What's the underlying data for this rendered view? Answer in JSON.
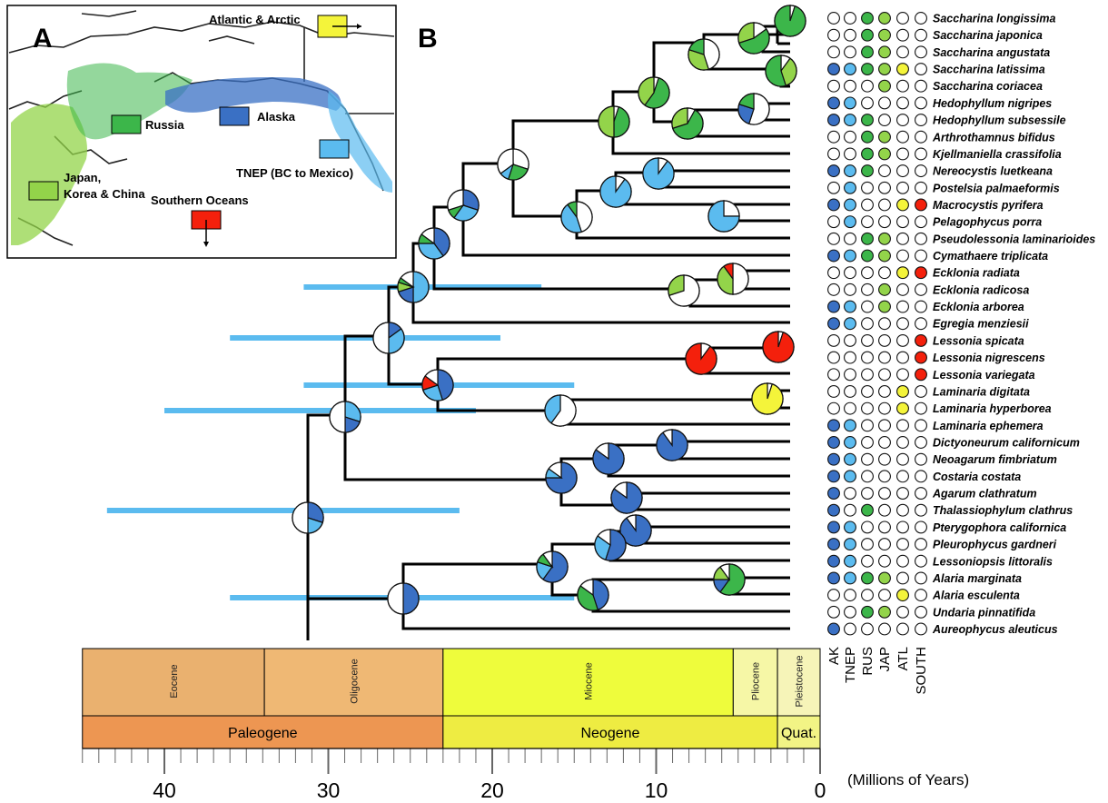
{
  "panel_a": {
    "label": "A"
  },
  "panel_b": {
    "label": "B"
  },
  "regions": [
    {
      "key": "AK",
      "name": "Alaska",
      "color": "#3a70c4"
    },
    {
      "key": "TNEP",
      "name": "TNEP (BC to Mexico)",
      "color": "#5bbbef"
    },
    {
      "key": "RUS",
      "name": "Russia",
      "color": "#3cb64a"
    },
    {
      "key": "JAP",
      "name": "Japan, Korea & China",
      "color": "#93d44a"
    },
    {
      "key": "ATL",
      "name": "Atlantic & Arctic",
      "color": "#f4f43a"
    },
    {
      "key": "SOUTH",
      "name": "Southern Oceans",
      "color": "#f4200c"
    }
  ],
  "species": [
    {
      "name": "Saccharina longissima",
      "regions": [
        0,
        0,
        1,
        1,
        0,
        0
      ]
    },
    {
      "name": "Saccharina japonica",
      "regions": [
        0,
        0,
        1,
        1,
        0,
        0
      ]
    },
    {
      "name": "Saccharina angustata",
      "regions": [
        0,
        0,
        1,
        1,
        0,
        0
      ]
    },
    {
      "name": "Saccharina latissima",
      "regions": [
        1,
        1,
        1,
        1,
        1,
        0
      ]
    },
    {
      "name": "Saccharina coriacea",
      "regions": [
        0,
        0,
        0,
        1,
        0,
        0
      ]
    },
    {
      "name": "Hedophyllum nigripes",
      "regions": [
        1,
        1,
        0,
        0,
        0,
        0
      ]
    },
    {
      "name": "Hedophyllum subsessile",
      "regions": [
        1,
        1,
        1,
        0,
        0,
        0
      ]
    },
    {
      "name": "Arthrothamnus bifidus",
      "regions": [
        0,
        0,
        1,
        1,
        0,
        0
      ]
    },
    {
      "name": "Kjellmaniella crassifolia",
      "regions": [
        0,
        0,
        1,
        1,
        0,
        0
      ]
    },
    {
      "name": "Nereocystis luetkeana",
      "regions": [
        1,
        1,
        1,
        0,
        0,
        0
      ]
    },
    {
      "name": "Postelsia palmaeformis",
      "regions": [
        0,
        1,
        0,
        0,
        0,
        0
      ]
    },
    {
      "name": "Macrocystis pyrifera",
      "regions": [
        1,
        1,
        0,
        0,
        1,
        1
      ]
    },
    {
      "name": "Pelagophycus porra",
      "regions": [
        0,
        1,
        0,
        0,
        0,
        0
      ]
    },
    {
      "name": "Pseudolessonia laminarioides",
      "regions": [
        0,
        0,
        1,
        1,
        0,
        0
      ]
    },
    {
      "name": "Cymathaere triplicata",
      "regions": [
        1,
        1,
        1,
        1,
        0,
        0
      ]
    },
    {
      "name": "Ecklonia radiata",
      "regions": [
        0,
        0,
        0,
        0,
        1,
        1
      ]
    },
    {
      "name": "Ecklonia radicosa",
      "regions": [
        0,
        0,
        0,
        1,
        0,
        0
      ]
    },
    {
      "name": "Ecklonia arborea",
      "regions": [
        1,
        1,
        0,
        1,
        0,
        0
      ]
    },
    {
      "name": "Egregia menziesii",
      "regions": [
        1,
        1,
        0,
        0,
        0,
        0
      ]
    },
    {
      "name": "Lessonia spicata",
      "regions": [
        0,
        0,
        0,
        0,
        0,
        1
      ]
    },
    {
      "name": "Lessonia nigrescens",
      "regions": [
        0,
        0,
        0,
        0,
        0,
        1
      ]
    },
    {
      "name": "Lessonia variegata",
      "regions": [
        0,
        0,
        0,
        0,
        0,
        1
      ]
    },
    {
      "name": "Laminaria digitata",
      "regions": [
        0,
        0,
        0,
        0,
        1,
        0
      ]
    },
    {
      "name": "Laminaria hyperborea",
      "regions": [
        0,
        0,
        0,
        0,
        1,
        0
      ]
    },
    {
      "name": "Laminaria ephemera",
      "regions": [
        1,
        1,
        0,
        0,
        0,
        0
      ]
    },
    {
      "name": "Dictyoneurum californicum",
      "regions": [
        1,
        1,
        0,
        0,
        0,
        0
      ]
    },
    {
      "name": "Neoagarum fimbriatum",
      "regions": [
        1,
        1,
        0,
        0,
        0,
        0
      ]
    },
    {
      "name": "Costaria costata",
      "regions": [
        1,
        1,
        0,
        0,
        0,
        0
      ]
    },
    {
      "name": "Agarum clathratum",
      "regions": [
        1,
        0,
        0,
        0,
        0,
        0
      ]
    },
    {
      "name": "Thalassiophylum clathrus",
      "regions": [
        1,
        0,
        1,
        0,
        0,
        0
      ]
    },
    {
      "name": "Pterygophora californica",
      "regions": [
        1,
        1,
        0,
        0,
        0,
        0
      ]
    },
    {
      "name": "Pleurophycus gardneri",
      "regions": [
        1,
        1,
        0,
        0,
        0,
        0
      ]
    },
    {
      "name": "Lessoniopsis littoralis",
      "regions": [
        1,
        1,
        0,
        0,
        0,
        0
      ]
    },
    {
      "name": "Alaria marginata",
      "regions": [
        1,
        1,
        1,
        1,
        0,
        0
      ]
    },
    {
      "name": "Alaria esculenta",
      "regions": [
        0,
        0,
        0,
        0,
        1,
        0
      ]
    },
    {
      "name": "Undaria pinnatifida",
      "regions": [
        0,
        0,
        1,
        1,
        0,
        0
      ]
    },
    {
      "name": "Aureophycus aleuticus",
      "regions": [
        1,
        0,
        0,
        0,
        0,
        0
      ]
    }
  ],
  "column_headers": [
    "AK",
    "TNEP",
    "RUS",
    "JAP",
    "ATL",
    "SOUTH"
  ],
  "timescale": {
    "epochs": [
      {
        "name": "Eocene",
        "start": 45,
        "end": 33.9,
        "color": "#eab16f"
      },
      {
        "name": "Oligocene",
        "start": 33.9,
        "end": 23,
        "color": "#efb874"
      },
      {
        "name": "Miocene",
        "start": 23,
        "end": 5.3,
        "color": "#eefc3c"
      },
      {
        "name": "Pliocene",
        "start": 5.3,
        "end": 2.6,
        "color": "#f6f7a6"
      },
      {
        "name": "Pleistocene",
        "start": 2.6,
        "end": 0,
        "color": "#f6f4b8"
      }
    ],
    "periods": [
      {
        "name": "Paleogene",
        "start": 45,
        "end": 23,
        "color": "#ed9652"
      },
      {
        "name": "Neogene",
        "start": 23,
        "end": 2.6,
        "color": "#eeec42"
      },
      {
        "name": "Quat.",
        "start": 2.6,
        "end": 0,
        "color": "#f2f485"
      }
    ],
    "tick_labels": [
      "40",
      "30",
      "20",
      "10",
      "0"
    ],
    "units": "(Millions of Years)"
  },
  "colors": {
    "empty": "#ffffff",
    "stroke": "#111111",
    "ci_bar": "#5bbbef"
  }
}
